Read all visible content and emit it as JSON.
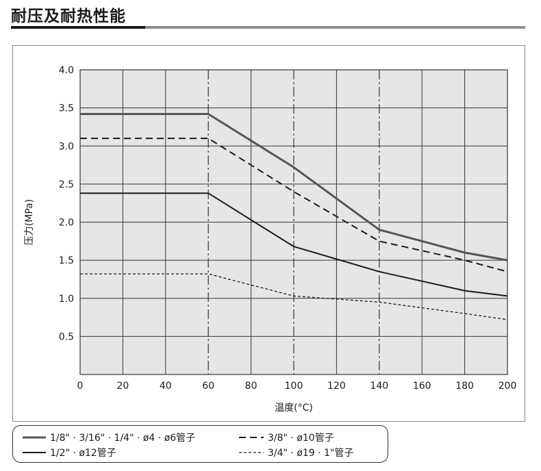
{
  "header": {
    "title": "耐压及耐热性能"
  },
  "colors": {
    "plot_bg": "#e6e6e6",
    "grid": "#333333",
    "series_gray": "#555555",
    "series_black": "#1a1a1a"
  },
  "chart_data": {
    "type": "line",
    "title": "",
    "xlabel": "温度(°C)",
    "ylabel": "压力(MPa)",
    "xlim": [
      0,
      200
    ],
    "ylim": [
      0,
      4.0
    ],
    "x_ticks": [
      "0",
      "20",
      "40",
      "60",
      "80",
      "100",
      "120",
      "140",
      "160",
      "180",
      "200"
    ],
    "y_ticks": [
      "0.5",
      "1.0",
      "1.5",
      "2.0",
      "2.5",
      "3.0",
      "3.5",
      "4.0"
    ],
    "grid": true,
    "dashdot_gridlines_x": [
      60,
      100,
      140
    ],
    "legend_position": "bottom",
    "series": [
      {
        "name": "1/8\" · 3/16\" · 1/4\" · ø4 · ø6管子",
        "style": "solid-thick-gray",
        "x": [
          0,
          60,
          100,
          140,
          180,
          200
        ],
        "y": [
          3.42,
          3.42,
          2.72,
          1.9,
          1.6,
          1.5
        ]
      },
      {
        "name": "3/8\" · ø10管子",
        "style": "dashed",
        "x": [
          0,
          60,
          100,
          140,
          180,
          200
        ],
        "y": [
          3.1,
          3.1,
          2.4,
          1.75,
          1.5,
          1.35
        ]
      },
      {
        "name": "1/2\" · ø12管子",
        "style": "solid",
        "x": [
          0,
          60,
          100,
          140,
          180,
          200
        ],
        "y": [
          2.38,
          2.38,
          1.68,
          1.35,
          1.1,
          1.03
        ]
      },
      {
        "name": "3/4\" · ø19 · 1\"管子",
        "style": "dotted",
        "x": [
          0,
          60,
          100,
          140,
          180,
          200
        ],
        "y": [
          1.32,
          1.32,
          1.03,
          0.95,
          0.8,
          0.72
        ]
      }
    ]
  }
}
